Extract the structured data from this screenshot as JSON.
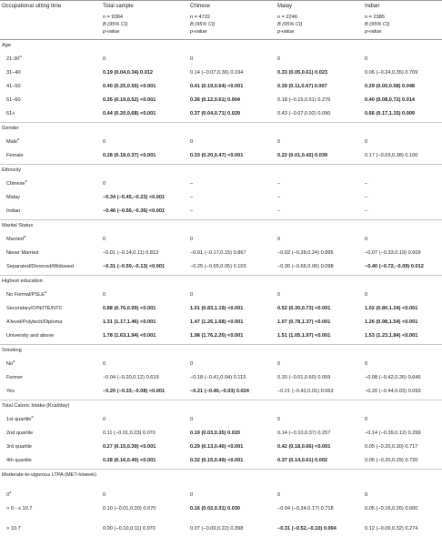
{
  "header": {
    "row_label": "Occupational sitting time",
    "groups": [
      "Total sample",
      "Chinese",
      "Malay",
      "Indian"
    ],
    "n": [
      "n = 9384",
      "n = 4722",
      "n = 2246",
      "n = 2385"
    ],
    "stat": "B (95% CI)",
    "pval": "p-value"
  },
  "rows": [
    {
      "section": "Age"
    },
    {
      "label": "21-30",
      "sup": "a",
      "cells": [
        {
          "t": "0"
        },
        {
          "t": "0"
        },
        {
          "t": "0"
        },
        {
          "t": "0"
        }
      ]
    },
    {
      "label": "31–40",
      "cells": [
        {
          "t": "0.19 (0.04,0.34) 0.012",
          "b": true
        },
        {
          "t": "0.14 (−0.07,0.36) 0.194"
        },
        {
          "t": "0.33 (0.05,0.61) 0.023",
          "b": true
        },
        {
          "t": "0.06 (−0.24,0.35) 0.709"
        }
      ]
    },
    {
      "label": "41–50",
      "cells": [
        {
          "t": "0.40 (0.25,0.55) <0.001",
          "b": true
        },
        {
          "t": "0.41 (0.19,0.64) <0.001",
          "b": true
        },
        {
          "t": "0.39 (0.11,0.67) 0.007",
          "b": true
        },
        {
          "t": "0.29 (0.00,0.58) 0.048",
          "b": true
        }
      ]
    },
    {
      "label": "51–60",
      "cells": [
        {
          "t": "0.35 (0.19,0.52) <0.001",
          "b": true
        },
        {
          "t": "0.36 (0.12,0.61) 0.004",
          "b": true
        },
        {
          "t": "0.18 (−0.15,0.51) 0.276"
        },
        {
          "t": "0.40 (0.08,0.72) 0.014",
          "b": true
        }
      ]
    },
    {
      "label": "61+",
      "cells": [
        {
          "t": "0.44 (0.20,0.68) <0.001",
          "b": true
        },
        {
          "t": "0.37 (0.04,0.71) 0.029",
          "b": true
        },
        {
          "t": "0.43 (−0.07,0.92) 0.090"
        },
        {
          "t": "0.66 (0.17,1.15) 0.009",
          "b": true
        }
      ]
    },
    {
      "section": "Gender"
    },
    {
      "label": "Male",
      "sup": "a",
      "cells": [
        {
          "t": "0"
        },
        {
          "t": "0"
        },
        {
          "t": "0"
        },
        {
          "t": "0"
        }
      ]
    },
    {
      "label": "Female",
      "cells": [
        {
          "t": "0.28 (0.18,0.37) <0.001",
          "b": true
        },
        {
          "t": "0.33 (0.20,0.47) <0.001",
          "b": true
        },
        {
          "t": "0.22 (0.01,0.42) 0.039",
          "b": true
        },
        {
          "t": "0.17 (−0.03,0.38) 0.100"
        }
      ]
    },
    {
      "section": "Ethnicity"
    },
    {
      "label": "Chinese",
      "sup": "a",
      "cells": [
        {
          "t": "0"
        },
        {
          "t": "–"
        },
        {
          "t": "–"
        },
        {
          "t": "–"
        }
      ]
    },
    {
      "label": "Malay",
      "cells": [
        {
          "t": "−0.34 (−0.45,−0.23) <0.001",
          "b": true
        },
        {
          "t": "–"
        },
        {
          "t": "–"
        },
        {
          "t": "–"
        }
      ]
    },
    {
      "label": "Indian",
      "cells": [
        {
          "t": "−0.46 (−0.56,−0.36) <0.001",
          "b": true
        },
        {
          "t": "–"
        },
        {
          "t": "–"
        },
        {
          "t": "–"
        }
      ]
    },
    {
      "section": "Marital Status"
    },
    {
      "label": "Married",
      "sup": "a",
      "cells": [
        {
          "t": "0"
        },
        {
          "t": "0"
        },
        {
          "t": "0"
        },
        {
          "t": "0"
        }
      ]
    },
    {
      "label": "Never Married",
      "cells": [
        {
          "t": "−0.01 (−0.14,0.11) 0.813"
        },
        {
          "t": "−0.01 (−0.17,0.15) 0.867"
        },
        {
          "t": "−0.02 (−0.28,0.24) 0.895"
        },
        {
          "t": "−0.07 (−0.33,0.19) 0.609"
        }
      ]
    },
    {
      "label": "Separated/Divorced/Widowed",
      "cells": [
        {
          "t": "−0.31 (−0.50,−0.13) <0.001",
          "b": true
        },
        {
          "t": "−0.25 (−0.55,0.05) 0.103"
        },
        {
          "t": "−0.30 (−0.66,0.06) 0.098"
        },
        {
          "t": "−0.40 (−0.72,−0.09) 0.012",
          "b": true
        }
      ]
    },
    {
      "section": "Highest education"
    },
    {
      "label": "No Formal/PSLE",
      "sup": "a",
      "cells": [
        {
          "t": "0"
        },
        {
          "t": "0"
        },
        {
          "t": "0"
        },
        {
          "t": "0"
        }
      ]
    },
    {
      "label": "Secondary/O/N/ITE/NTC",
      "cells": [
        {
          "t": "0.88 (0.76,0.99) <0.001",
          "b": true
        },
        {
          "t": "1.01 (0.83,1.19) <0.001",
          "b": true
        },
        {
          "t": "0.52 (0.30,0.73) <0.001",
          "b": true
        },
        {
          "t": "1.02 (0.80,1.24) <0.001",
          "b": true
        }
      ]
    },
    {
      "label": "A'level/Polytech/Diploma",
      "cells": [
        {
          "t": "1.31 (1.17,1.46) <0.001",
          "b": true
        },
        {
          "t": "1.47 (1.26,1.68) <0.001",
          "b": true
        },
        {
          "t": "1.07 (0.78,1.37) <0.001",
          "b": true
        },
        {
          "t": "1.26 (0.98,1.54) <0.001",
          "b": true
        }
      ]
    },
    {
      "label": "University and above",
      "cells": [
        {
          "t": "1.78 (1.63,1.94) <0.001",
          "b": true
        },
        {
          "t": "1.98 (1.76,2.20) <0.001",
          "b": true
        },
        {
          "t": "1.51 (1.05,1.97) <0.001",
          "b": true
        },
        {
          "t": "1.53 (1.23,1.84) <0.001",
          "b": true
        }
      ]
    },
    {
      "section": "Smoking"
    },
    {
      "label": "No",
      "sup": "a",
      "cells": [
        {
          "t": "0"
        },
        {
          "t": "0"
        },
        {
          "t": "0"
        },
        {
          "t": "0"
        }
      ]
    },
    {
      "label": "Former",
      "cells": [
        {
          "t": "−0.04 (−0.20,0.12) 0.619"
        },
        {
          "t": "−0.18 (−0.41,0.04) 0.113"
        },
        {
          "t": "0.30 (−0.01,0.60) 0.059"
        },
        {
          "t": "−0.08 (−0.42,0.26) 0.646"
        }
      ]
    },
    {
      "label": "Yes",
      "cells": [
        {
          "t": "−0.20 (−0.33,−0.08) <0.001",
          "b": true
        },
        {
          "t": "−0.21 (−0.40,−0.03) 0.024",
          "b": true
        },
        {
          "t": "−0.21 (−0.42,0.01) 0.063"
        },
        {
          "t": "−0.20 (−0.44,0.03) 0.093"
        }
      ]
    },
    {
      "section": "Total Caloric Intake (Kcal/day)"
    },
    {
      "label": "1st quartile",
      "sup": "a",
      "cells": [
        {
          "t": "0"
        },
        {
          "t": "0"
        },
        {
          "t": "0"
        },
        {
          "t": "0"
        }
      ]
    },
    {
      "label": "2nd quartile",
      "cells": [
        {
          "t": "0.11 (−0.01,0.23) 0.070"
        },
        {
          "t": "0.19 (0.03,0.35) 0.020",
          "b": true
        },
        {
          "t": "0.14 (−0.10,0.37) 0.257"
        },
        {
          "t": "−0.14 (−0.39,0.12) 0.299"
        }
      ]
    },
    {
      "label": "3rd quartile",
      "cells": [
        {
          "t": "0.27 (0.15,0.39) <0.001",
          "b": true
        },
        {
          "t": "0.29 (0.13,0.46) <0.001",
          "b": true
        },
        {
          "t": "0.42 (0.18,0.66) <0.001",
          "b": true
        },
        {
          "t": "0.05 (−0.20,0.30) 0.717"
        }
      ]
    },
    {
      "label": "4th quartile",
      "cells": [
        {
          "t": "0.28 (0.16,0.40) <0.001",
          "b": true
        },
        {
          "t": "0.32 (0.15,0.49) <0.001",
          "b": true
        },
        {
          "t": "0.37 (0.14,0.61) 0.002",
          "b": true
        },
        {
          "t": "0.05 (−0.20,0.29) 0.720"
        }
      ]
    },
    {
      "section": "Moderate-to-vigorous LTPA (MET-h/week)",
      "tall": true
    },
    {
      "label": "0",
      "sup": "a",
      "cells": [
        {
          "t": "0"
        },
        {
          "t": "0"
        },
        {
          "t": "0"
        },
        {
          "t": "0"
        }
      ]
    },
    {
      "label": "> 0 - ≤ 10.7",
      "tall": true,
      "cells": [
        {
          "t": "0.10 (−0.01,0.20) 0.070"
        },
        {
          "t": "0.16 (0.02,0.31) 0.030",
          "b": true
        },
        {
          "t": "−0.04 (−0.24,0.17) 0.718"
        },
        {
          "t": "0.05 (−0.16,0.26) 0.660",
          "wrap": true
        }
      ]
    },
    {
      "label": "> 10.7",
      "cells": [
        {
          "t": "0.00 (−0.10,0.11) 0.970"
        },
        {
          "t": "0.07 (−0.09,0.22) 0.398"
        },
        {
          "t": "−0.31 (−0.52,−0.10) 0.004",
          "b": true
        },
        {
          "t": "0.12 (−0.09,0.32) 0.274"
        }
      ]
    }
  ]
}
